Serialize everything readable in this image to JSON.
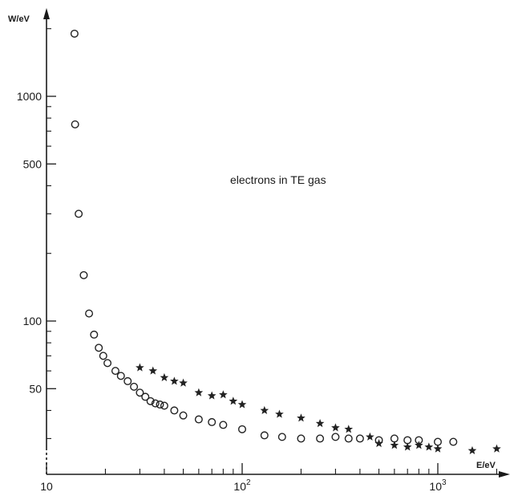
{
  "chart_data": {
    "type": "scatter",
    "annotation": "electrons in TE gas",
    "ylabel": "W/eV",
    "xlabel": "E/eV",
    "x_scale": "log",
    "y_scale": "log",
    "xlim": [
      10,
      2500
    ],
    "ylim": [
      25,
      3000
    ],
    "x_ticks": [
      {
        "value": 10,
        "label": "10"
      },
      {
        "value": 100,
        "label": "10",
        "exp": "2"
      },
      {
        "value": 1000,
        "label": "10",
        "exp": "3"
      }
    ],
    "y_ticks": [
      {
        "value": 50,
        "label": "50"
      },
      {
        "value": 100,
        "label": "100"
      },
      {
        "value": 500,
        "label": "500"
      },
      {
        "value": 1000,
        "label": "1000"
      }
    ],
    "y_minor_ticks": [
      30,
      40,
      60,
      70,
      80,
      90,
      200,
      300,
      400,
      600,
      700,
      800,
      900,
      2000
    ],
    "x_minor_ticks": [
      20,
      30,
      40,
      50,
      60,
      70,
      80,
      90,
      200,
      300,
      400,
      500,
      600,
      700,
      800,
      900,
      2000
    ],
    "series": [
      {
        "marker": "circle",
        "color": "#222222",
        "points": [
          [
            13.9,
            1900
          ],
          [
            14.0,
            750
          ],
          [
            14.6,
            300
          ],
          [
            15.5,
            160
          ],
          [
            16.5,
            108
          ],
          [
            17.5,
            87
          ],
          [
            18.5,
            76
          ],
          [
            19.5,
            70
          ],
          [
            20.5,
            65
          ],
          [
            22.5,
            60
          ],
          [
            24,
            57
          ],
          [
            26,
            54
          ],
          [
            28,
            51
          ],
          [
            30,
            48
          ],
          [
            32,
            46
          ],
          [
            34,
            44
          ],
          [
            36,
            43
          ],
          [
            38,
            42.5
          ],
          [
            40,
            42
          ],
          [
            45,
            40
          ],
          [
            50,
            38
          ],
          [
            60,
            36.5
          ],
          [
            70,
            35.5
          ],
          [
            80,
            34.5
          ],
          [
            100,
            33
          ],
          [
            130,
            31
          ],
          [
            160,
            30.5
          ],
          [
            200,
            30
          ],
          [
            250,
            30
          ],
          [
            300,
            30.5
          ],
          [
            350,
            30
          ],
          [
            400,
            30
          ],
          [
            500,
            29.5
          ],
          [
            600,
            30
          ],
          [
            700,
            29.5
          ],
          [
            800,
            29.5
          ],
          [
            1000,
            29
          ],
          [
            1200,
            29
          ]
        ]
      },
      {
        "marker": "star",
        "color": "#222222",
        "points": [
          [
            30,
            62
          ],
          [
            35,
            60
          ],
          [
            40,
            56
          ],
          [
            45,
            54
          ],
          [
            50,
            53
          ],
          [
            60,
            48
          ],
          [
            70,
            46.5
          ],
          [
            80,
            47
          ],
          [
            90,
            44
          ],
          [
            100,
            42.5
          ],
          [
            130,
            40
          ],
          [
            155,
            38.5
          ],
          [
            200,
            37
          ],
          [
            250,
            35
          ],
          [
            300,
            33.5
          ],
          [
            350,
            33
          ],
          [
            450,
            30.5
          ],
          [
            500,
            28.5
          ],
          [
            600,
            28
          ],
          [
            700,
            27.5
          ],
          [
            800,
            28
          ],
          [
            900,
            27.5
          ],
          [
            1000,
            27
          ],
          [
            1500,
            26.5
          ],
          [
            2000,
            27
          ]
        ]
      }
    ]
  }
}
